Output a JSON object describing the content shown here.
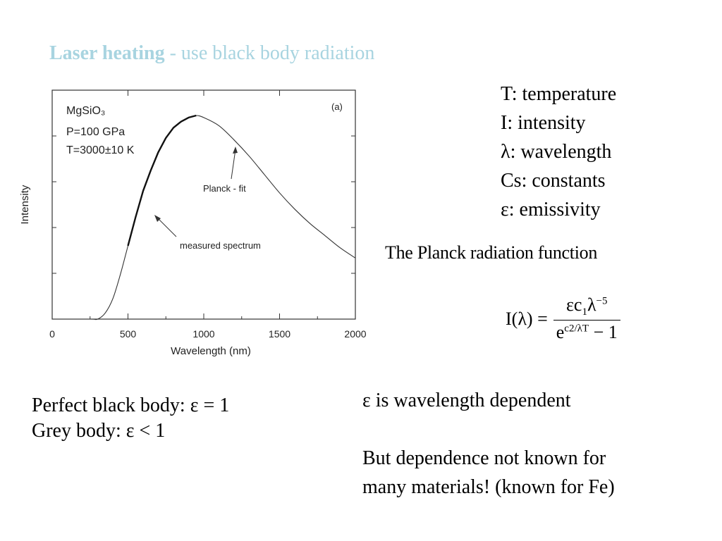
{
  "slide": {
    "title_bold": "Laser heating",
    "title_rest": " - use black body radiation",
    "title_color": "#a8d4e0"
  },
  "legend_list": [
    "T: temperature",
    "I: intensity",
    "λ: wavelength",
    "Cs: constants",
    "ε: emissivity"
  ],
  "planck": {
    "heading": "The Planck radiation function",
    "lhs": "I(λ) =",
    "num_main": "εc",
    "num_sub": "1",
    "num_tail": "λ",
    "num_sup": "−5",
    "den_base": "e",
    "den_sup": "c2/λT",
    "den_tail": " − 1"
  },
  "bottom_left": [
    "Perfect black body: ε = 1",
    "Grey body:  ε < 1"
  ],
  "bottom_right": [
    "ε is wavelength dependent",
    "",
    "But dependence not known for",
    "many materials! (known for Fe)"
  ],
  "chart_data": {
    "type": "line",
    "xlabel": "Wavelength  (nm)",
    "ylabel": "Intensity",
    "xlim": [
      0,
      2000
    ],
    "ylim": [
      0,
      1.0
    ],
    "x_ticks": [
      "0",
      "500",
      "1000",
      "1500",
      "2000"
    ],
    "panel_label": "(a)",
    "info_lines": [
      "MgSiO₃",
      "P=100 GPa",
      "T=3000±10 K"
    ],
    "annotations": [
      "Planck - fit",
      "measured spectrum"
    ],
    "series": [
      {
        "x": [
          300,
          350,
          400,
          450,
          500,
          550,
          600,
          650,
          700,
          750,
          800,
          850,
          900,
          950,
          1000,
          1100,
          1200,
          1300,
          1400,
          1500,
          1600,
          1700,
          1800,
          1900,
          2000
        ],
        "values": [
          0.0,
          0.03,
          0.1,
          0.22,
          0.36,
          0.5,
          0.63,
          0.73,
          0.82,
          0.89,
          0.94,
          0.97,
          0.99,
          1.0,
          0.99,
          0.95,
          0.88,
          0.8,
          0.71,
          0.62,
          0.54,
          0.47,
          0.41,
          0.35,
          0.3
        ]
      }
    ]
  }
}
